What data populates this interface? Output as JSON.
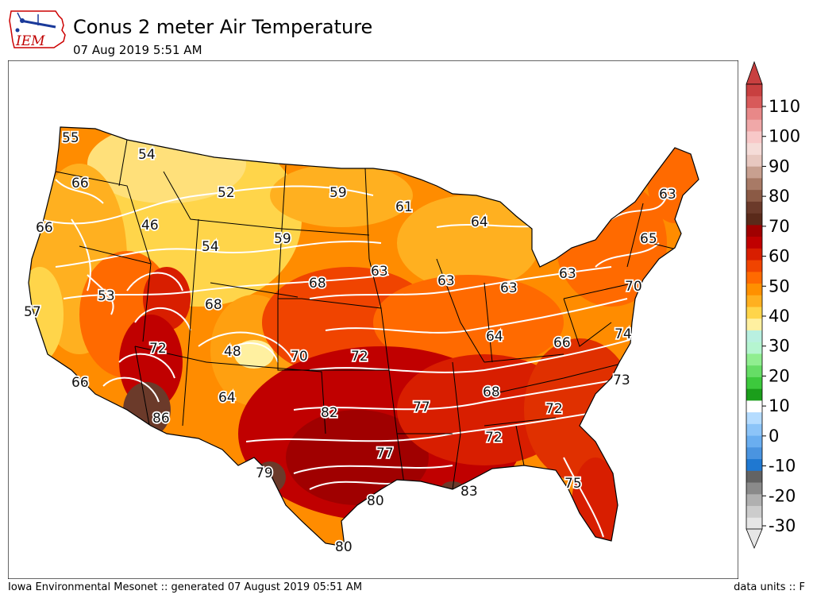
{
  "logo": {
    "text": "IEM"
  },
  "header": {
    "title": "Conus 2 meter Air Temperature",
    "subtitle": "07 Aug 2019 5:51 AM"
  },
  "footer": {
    "credit": "Iowa Environmental Mesonet :: generated 07 August 2019 05:51 AM",
    "units": "data units :: F"
  },
  "colorbar": {
    "ticks": [
      "-30",
      "-20",
      "-10",
      "0",
      "10",
      "20",
      "30",
      "40",
      "50",
      "60",
      "70",
      "80",
      "90",
      "100",
      "110"
    ],
    "colors": [
      "#e6e6e6",
      "#cccccc",
      "#b0b0b0",
      "#8a8a8a",
      "#636363",
      "#1f78d1",
      "#4a94e0",
      "#6aaef0",
      "#8cc4f8",
      "#b5dcff",
      "#ffffff",
      "#1b9e1b",
      "#3dc93d",
      "#66dd66",
      "#90ee90",
      "#b5f5d0",
      "#b9f0e0",
      "#fff0a0",
      "#ffd54a",
      "#ffb020",
      "#ff9000",
      "#ff6a00",
      "#f04400",
      "#d81e00",
      "#c00000",
      "#a00000",
      "#5a2a1a",
      "#6b3a2a",
      "#8b5a45",
      "#a87a66",
      "#c8a090",
      "#e8c8c0",
      "#f5dcd8",
      "#f8c8c8",
      "#f0a8a8",
      "#e88888",
      "#d85a5a",
      "#c84040"
    ]
  },
  "map": {
    "labels": [
      {
        "text": "55"
      },
      {
        "text": "54"
      },
      {
        "text": "66"
      },
      {
        "text": "52"
      },
      {
        "text": "59"
      },
      {
        "text": "61"
      },
      {
        "text": "64"
      },
      {
        "text": "63"
      },
      {
        "text": "66"
      },
      {
        "text": "46"
      },
      {
        "text": "59"
      },
      {
        "text": "65"
      },
      {
        "text": "54"
      },
      {
        "text": "63"
      },
      {
        "text": "63"
      },
      {
        "text": "68"
      },
      {
        "text": "63"
      },
      {
        "text": "63"
      },
      {
        "text": "53"
      },
      {
        "text": "68"
      },
      {
        "text": "70"
      },
      {
        "text": "57"
      },
      {
        "text": "72"
      },
      {
        "text": "48"
      },
      {
        "text": "70"
      },
      {
        "text": "72"
      },
      {
        "text": "64"
      },
      {
        "text": "66"
      },
      {
        "text": "74"
      },
      {
        "text": "66"
      },
      {
        "text": "73"
      },
      {
        "text": "68"
      },
      {
        "text": "86"
      },
      {
        "text": "64"
      },
      {
        "text": "82"
      },
      {
        "text": "77"
      },
      {
        "text": "72"
      },
      {
        "text": "72"
      },
      {
        "text": "77"
      },
      {
        "text": "79"
      },
      {
        "text": "75"
      },
      {
        "text": "83"
      },
      {
        "text": "80"
      },
      {
        "text": "80"
      }
    ]
  }
}
